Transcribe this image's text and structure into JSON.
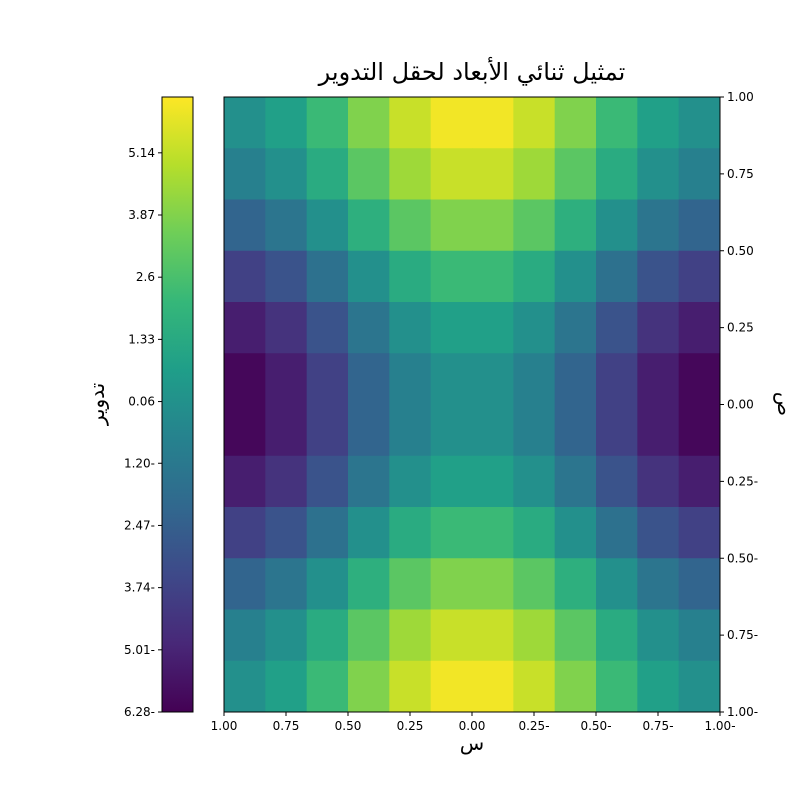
{
  "chart_data": {
    "type": "contourf",
    "title": "تمثيل ثنائي الأبعاد لحقل التدوير",
    "xlabel": "س",
    "ylabel": "ص",
    "colorbar_label": "تدوير",
    "colormap": "viridis",
    "xlim": [
      1,
      -1
    ],
    "ylim": [
      -1,
      1
    ],
    "clim": [
      -6.28,
      6.28
    ],
    "xticks": [
      {
        "value": 1,
        "label": "1.00"
      },
      {
        "value": 0.75,
        "label": "0.75"
      },
      {
        "value": 0.5,
        "label": "0.50"
      },
      {
        "value": 0.25,
        "label": "0.25"
      },
      {
        "value": 0,
        "label": "0.00"
      },
      {
        "value": -0.25,
        "label": "0.25-"
      },
      {
        "value": -0.5,
        "label": "0.50-"
      },
      {
        "value": -0.75,
        "label": "0.75-"
      },
      {
        "value": -1,
        "label": "1.00-"
      }
    ],
    "yticks": [
      {
        "value": 1,
        "label": "1.00"
      },
      {
        "value": 0.75,
        "label": "0.75"
      },
      {
        "value": 0.5,
        "label": "0.50"
      },
      {
        "value": 0.25,
        "label": "0.25"
      },
      {
        "value": 0,
        "label": "0.00"
      },
      {
        "value": -0.25,
        "label": "0.25-"
      },
      {
        "value": -0.5,
        "label": "0.50-"
      },
      {
        "value": -0.75,
        "label": "0.75-"
      },
      {
        "value": -1,
        "label": "1.00-"
      }
    ],
    "cticks": [
      {
        "value": -6.28,
        "label": "6.28-"
      },
      {
        "value": -5.01,
        "label": "5.01-"
      },
      {
        "value": -3.74,
        "label": "3.74-"
      },
      {
        "value": -2.47,
        "label": "2.47-"
      },
      {
        "value": -1.2,
        "label": "1.20-"
      },
      0.06,
      1.33,
      2.6,
      3.87,
      5.14
    ],
    "z": [
      [
        0,
        0.81,
        2.22,
        3.84,
        5.25,
        6.06,
        6.06,
        5.25,
        3.84,
        2.22,
        0.81,
        0
      ],
      [
        -0.81,
        0,
        1.41,
        3.03,
        4.44,
        5.25,
        5.25,
        4.44,
        3.03,
        1.41,
        0,
        -0.81
      ],
      [
        -2.22,
        -1.41,
        0,
        1.62,
        3.03,
        3.84,
        3.84,
        3.03,
        1.62,
        0,
        -1.41,
        -2.22
      ],
      [
        -3.84,
        -3.03,
        -1.62,
        0,
        1.41,
        2.22,
        2.22,
        1.41,
        0,
        -1.62,
        -3.03,
        -3.84
      ],
      [
        -5.25,
        -4.44,
        -3.03,
        -1.41,
        0,
        0.81,
        0.81,
        0,
        -1.41,
        -3.03,
        -4.44,
        -5.25
      ],
      [
        -6.06,
        -5.25,
        -3.84,
        -2.22,
        -0.81,
        0,
        0,
        -0.81,
        -2.22,
        -3.84,
        -5.25,
        -6.06
      ],
      [
        -6.06,
        -5.25,
        -3.84,
        -2.22,
        -0.81,
        0,
        0,
        -0.81,
        -2.22,
        -3.84,
        -5.25,
        -6.06
      ],
      [
        -5.25,
        -4.44,
        -3.03,
        -1.41,
        0,
        0.81,
        0.81,
        0,
        -1.41,
        -3.03,
        -4.44,
        -5.25
      ],
      [
        -3.84,
        -3.03,
        -1.62,
        0,
        1.41,
        2.22,
        2.22,
        1.41,
        0,
        -1.62,
        -3.03,
        -3.84
      ],
      [
        -2.22,
        -1.41,
        0,
        1.62,
        3.03,
        3.84,
        3.84,
        3.03,
        1.62,
        0,
        -1.41,
        -2.22
      ],
      [
        -0.81,
        0,
        1.41,
        3.03,
        4.44,
        5.25,
        5.25,
        4.44,
        3.03,
        1.41,
        0,
        -0.81
      ],
      [
        0,
        0.81,
        2.22,
        3.84,
        5.25,
        6.06,
        6.06,
        5.25,
        3.84,
        2.22,
        0.81,
        0
      ]
    ]
  }
}
